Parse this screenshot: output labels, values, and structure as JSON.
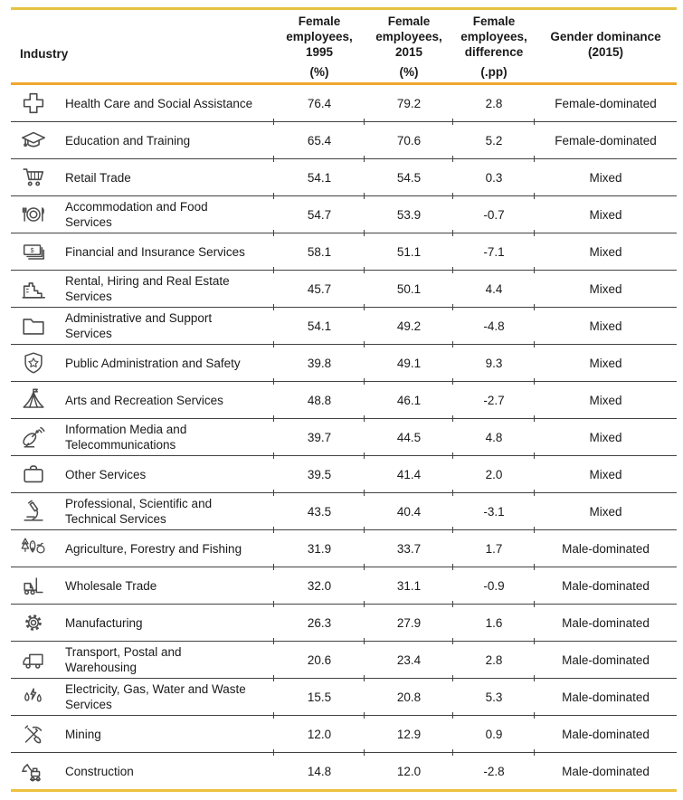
{
  "colors": {
    "gold_top": "#E5C342",
    "gold_header": "#EFA72E",
    "gold_bottom": "#EEC23F",
    "row_rule": "#414141",
    "text": "#1a1a1a",
    "icon": "#4b4b4b"
  },
  "chart_data": {
    "type": "table",
    "header": {
      "industry": "Industry",
      "value_columns": [
        {
          "line1": "Female",
          "line2": "employees,",
          "line3": "1995",
          "unit": "(%)"
        },
        {
          "line1": "Female",
          "line2": "employees,",
          "line3": "2015",
          "unit": "(%)"
        },
        {
          "line1": "Female",
          "line2": "employees,",
          "line3": "difference",
          "unit": "(.pp)"
        },
        {
          "line1": "",
          "line2": "Gender dominance",
          "line3": "(2015)",
          "unit": ""
        }
      ]
    },
    "rows": [
      {
        "icon": "medical-cross-icon",
        "industry": "Health Care and Social Assistance",
        "industry_lines": [
          "Health Care and Social Assistance"
        ],
        "pct_1995": "76.4",
        "pct_2015": "79.2",
        "difference": "2.8",
        "dominance": "Female-dominated"
      },
      {
        "icon": "graduation-cap-icon",
        "industry": "Education and Training",
        "industry_lines": [
          "Education and Training"
        ],
        "pct_1995": "65.4",
        "pct_2015": "70.6",
        "difference": "5.2",
        "dominance": "Female-dominated"
      },
      {
        "icon": "shopping-cart-icon",
        "industry": "Retail Trade",
        "industry_lines": [
          "Retail Trade"
        ],
        "pct_1995": "54.1",
        "pct_2015": "54.5",
        "difference": "0.3",
        "dominance": "Mixed"
      },
      {
        "icon": "restaurant-plate-icon",
        "industry": "Accommodation and Food Services",
        "industry_lines": [
          "Accommodation and Food",
          "Services"
        ],
        "pct_1995": "54.7",
        "pct_2015": "53.9",
        "difference": "-0.7",
        "dominance": "Mixed"
      },
      {
        "icon": "banknotes-icon",
        "industry": "Financial and Insurance Services",
        "industry_lines": [
          "Financial and Insurance Services"
        ],
        "pct_1995": "58.1",
        "pct_2015": "51.1",
        "difference": "-7.1",
        "dominance": "Mixed"
      },
      {
        "icon": "building-icon",
        "industry": "Rental, Hiring and Real Estate Services",
        "industry_lines": [
          "Rental, Hiring and Real Estate",
          "Services"
        ],
        "pct_1995": "45.7",
        "pct_2015": "50.1",
        "difference": "4.4",
        "dominance": "Mixed"
      },
      {
        "icon": "folder-icon",
        "industry": "Administrative and Support Services",
        "industry_lines": [
          "Administrative and Support",
          "Services"
        ],
        "pct_1995": "54.1",
        "pct_2015": "49.2",
        "difference": "-4.8",
        "dominance": "Mixed"
      },
      {
        "icon": "shield-star-icon",
        "industry": "Public Administration and Safety",
        "industry_lines": [
          "Public Administration and Safety"
        ],
        "pct_1995": "39.8",
        "pct_2015": "49.1",
        "difference": "9.3",
        "dominance": "Mixed"
      },
      {
        "icon": "circus-tent-icon",
        "industry": "Arts and Recreation Services",
        "industry_lines": [
          "Arts and Recreation Services"
        ],
        "pct_1995": "48.8",
        "pct_2015": "46.1",
        "difference": "-2.7",
        "dominance": "Mixed"
      },
      {
        "icon": "satellite-dish-icon",
        "industry": "Information Media and Telecommunications",
        "industry_lines": [
          "Information Media and",
          "Telecommunications"
        ],
        "pct_1995": "39.7",
        "pct_2015": "44.5",
        "difference": "4.8",
        "dominance": "Mixed"
      },
      {
        "icon": "briefcase-icon",
        "industry": "Other Services",
        "industry_lines": [
          "Other Services"
        ],
        "pct_1995": "39.5",
        "pct_2015": "41.4",
        "difference": "2.0",
        "dominance": "Mixed"
      },
      {
        "icon": "microscope-icon",
        "industry": "Professional, Scientific and Technical Services",
        "industry_lines": [
          "Professional, Scientific and",
          "Technical Services"
        ],
        "pct_1995": "43.5",
        "pct_2015": "40.4",
        "difference": "-3.1",
        "dominance": "Mixed"
      },
      {
        "icon": "tree-fish-fruit-icon",
        "industry": "Agriculture, Forestry and Fishing",
        "industry_lines": [
          "Agriculture, Forestry and Fishing"
        ],
        "pct_1995": "31.9",
        "pct_2015": "33.7",
        "difference": "1.7",
        "dominance": "Male-dominated"
      },
      {
        "icon": "forklift-icon",
        "industry": "Wholesale Trade",
        "industry_lines": [
          "Wholesale Trade"
        ],
        "pct_1995": "32.0",
        "pct_2015": "31.1",
        "difference": "-0.9",
        "dominance": "Male-dominated"
      },
      {
        "icon": "gear-icon",
        "industry": "Manufacturing",
        "industry_lines": [
          "Manufacturing"
        ],
        "pct_1995": "26.3",
        "pct_2015": "27.9",
        "difference": "1.6",
        "dominance": "Male-dominated"
      },
      {
        "icon": "truck-icon",
        "industry": "Transport, Postal and Warehousing",
        "industry_lines": [
          "Transport, Postal and",
          "Warehousing"
        ],
        "pct_1995": "20.6",
        "pct_2015": "23.4",
        "difference": "2.8",
        "dominance": "Male-dominated"
      },
      {
        "icon": "drops-lightning-icon",
        "industry": "Electricity, Gas, Water and Waste Services",
        "industry_lines": [
          "Electricity, Gas, Water and Waste",
          "Services"
        ],
        "pct_1995": "15.5",
        "pct_2015": "20.8",
        "difference": "5.3",
        "dominance": "Male-dominated"
      },
      {
        "icon": "pickaxe-shovel-icon",
        "industry": "Mining",
        "industry_lines": [
          "Mining"
        ],
        "pct_1995": "12.0",
        "pct_2015": "12.9",
        "difference": "0.9",
        "dominance": "Male-dominated"
      },
      {
        "icon": "excavator-icon",
        "industry": "Construction",
        "industry_lines": [
          "Construction"
        ],
        "pct_1995": "14.8",
        "pct_2015": "12.0",
        "difference": "-2.8",
        "dominance": "Male-dominated"
      }
    ]
  }
}
